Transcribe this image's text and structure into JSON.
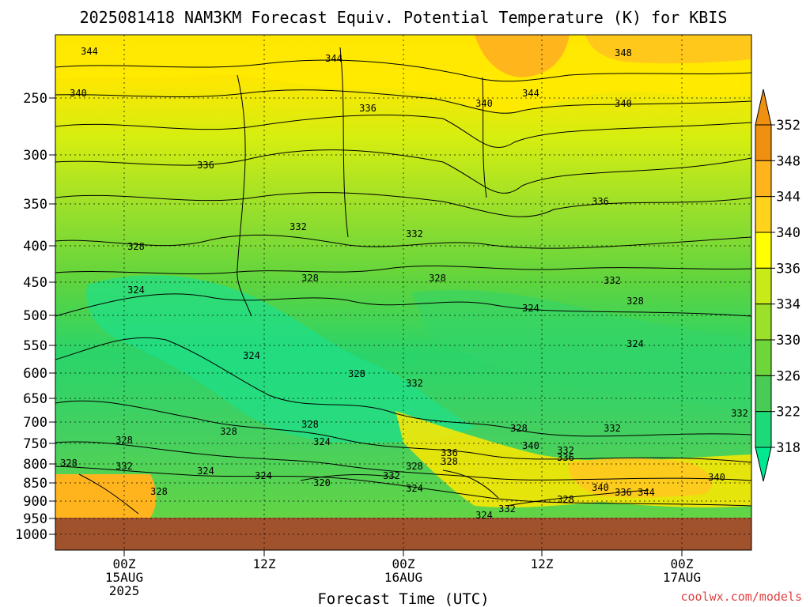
{
  "chart_data": {
    "type": "heatmap",
    "title": "2025081418 NAM3KM Forecast Equiv. Potential Temperature (K) for KBIS",
    "xlabel": "Forecast Time (UTC)",
    "ylabel": "",
    "x_ticks": [
      {
        "lines": [
          "00Z",
          "15AUG",
          "2025"
        ]
      },
      {
        "lines": [
          "12Z"
        ]
      },
      {
        "lines": [
          "00Z",
          "16AUG"
        ]
      },
      {
        "lines": [
          "12Z"
        ]
      },
      {
        "lines": [
          "00Z",
          "17AUG"
        ]
      }
    ],
    "y_ticks": [
      "250",
      "300",
      "350",
      "400",
      "450",
      "500",
      "550",
      "600",
      "650",
      "700",
      "750",
      "800",
      "850",
      "900",
      "950",
      "1000"
    ],
    "colorbar": {
      "levels": [
        318,
        322,
        326,
        330,
        334,
        336,
        340,
        344,
        348,
        352
      ],
      "colors": [
        "#00e890",
        "#1ed978",
        "#48cc55",
        "#6fd63a",
        "#9de02a",
        "#c8ea18",
        "#ffff00",
        "#ffd21e",
        "#ffb41e",
        "#f09010"
      ]
    },
    "contour_labels": [
      "344",
      "344",
      "348",
      "340",
      "336",
      "340",
      "344",
      "340",
      "336",
      "336",
      "332",
      "332",
      "328",
      "328",
      "328",
      "332",
      "324",
      "324",
      "328",
      "324",
      "324",
      "328",
      "332",
      "328",
      "328",
      "328",
      "324",
      "328",
      "332",
      "332",
      "324",
      "324",
      "320",
      "332",
      "328",
      "328",
      "324",
      "336",
      "328",
      "340",
      "336",
      "332",
      "340",
      "336",
      "344",
      "340",
      "328",
      "332",
      "324",
      "332",
      "328"
    ],
    "ground_color": "#a0522d",
    "grid": true
  },
  "footer": {
    "credit": "coolwx.com/models"
  },
  "colors": {
    "credit": "#e04040",
    "axis": "#000000"
  }
}
